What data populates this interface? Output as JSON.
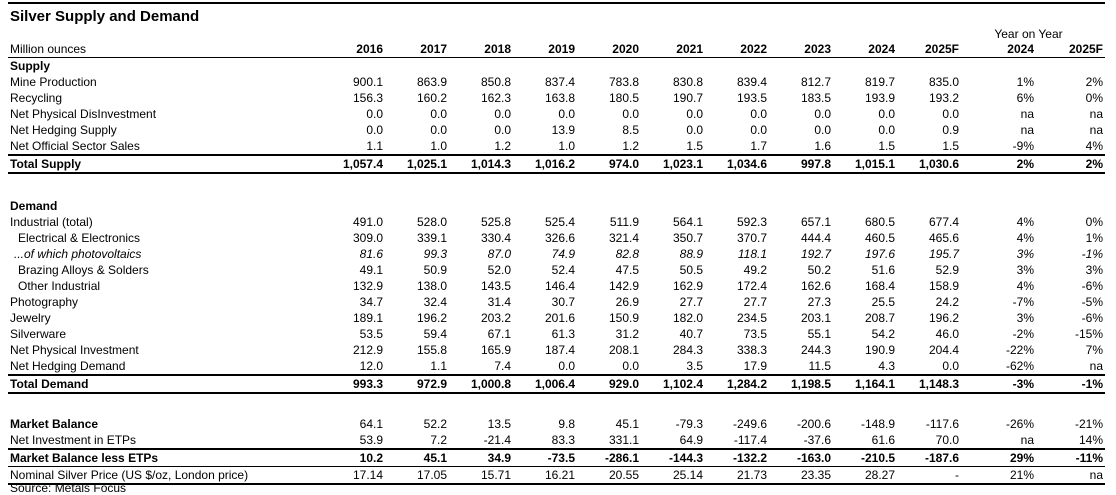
{
  "title": "Silver Supply and Demand",
  "unit_label": "Million ounces",
  "year_on_year_label": "Year on Year",
  "years": [
    "2016",
    "2017",
    "2018",
    "2019",
    "2020",
    "2021",
    "2022",
    "2023",
    "2024",
    "2025F"
  ],
  "yoy_years": [
    "2024",
    "2025F"
  ],
  "source_note": "Source: Metals Focus",
  "rows": [
    {
      "style": "section",
      "label": "Supply"
    },
    {
      "style": "normal",
      "label": "Mine Production",
      "values": [
        "900.1",
        "863.9",
        "850.8",
        "837.4",
        "783.8",
        "830.8",
        "839.4",
        "812.7",
        "819.7",
        "835.0"
      ],
      "yoy": [
        "1%",
        "2%"
      ]
    },
    {
      "style": "normal",
      "label": "Recycling",
      "values": [
        "156.3",
        "160.2",
        "162.3",
        "163.8",
        "180.5",
        "190.7",
        "193.5",
        "183.5",
        "193.9",
        "193.2"
      ],
      "yoy": [
        "6%",
        "0%"
      ]
    },
    {
      "style": "normal",
      "label": "Net Physical DisInvestment",
      "values": [
        "0.0",
        "0.0",
        "0.0",
        "0.0",
        "0.0",
        "0.0",
        "0.0",
        "0.0",
        "0.0",
        "0.0"
      ],
      "yoy": [
        "na",
        "na"
      ]
    },
    {
      "style": "normal",
      "label": "Net Hedging Supply",
      "values": [
        "0.0",
        "0.0",
        "0.0",
        "13.9",
        "8.5",
        "0.0",
        "0.0",
        "0.0",
        "0.0",
        "0.9"
      ],
      "yoy": [
        "na",
        "na"
      ]
    },
    {
      "style": "normal",
      "label": "Net Official Sector Sales",
      "values": [
        "1.1",
        "1.0",
        "1.2",
        "1.0",
        "1.2",
        "1.5",
        "1.7",
        "1.6",
        "1.5",
        "1.5"
      ],
      "yoy": [
        "-9%",
        "4%"
      ]
    },
    {
      "style": "total",
      "label": "Total Supply",
      "values": [
        "1,057.4",
        "1,025.1",
        "1,014.3",
        "1,016.2",
        "974.0",
        "1,023.1",
        "1,034.6",
        "997.8",
        "1,015.1",
        "1,030.6"
      ],
      "yoy": [
        "2%",
        "2%"
      ]
    },
    {
      "style": "spacer",
      "h": 24
    },
    {
      "style": "section",
      "label": "Demand"
    },
    {
      "style": "normal",
      "label": "Industrial (total)",
      "values": [
        "491.0",
        "528.0",
        "525.8",
        "525.4",
        "511.9",
        "564.1",
        "592.3",
        "657.1",
        "680.5",
        "677.4"
      ],
      "yoy": [
        "4%",
        "0%"
      ]
    },
    {
      "style": "indent",
      "label": "Electrical & Electronics",
      "values": [
        "309.0",
        "339.1",
        "330.4",
        "326.6",
        "321.4",
        "350.7",
        "370.7",
        "444.4",
        "460.5",
        "465.6"
      ],
      "yoy": [
        "4%",
        "1%"
      ]
    },
    {
      "style": "italic",
      "label": "...of which photovoltaics",
      "values": [
        "81.6",
        "99.3",
        "87.0",
        "74.9",
        "82.8",
        "88.9",
        "118.1",
        "192.7",
        "197.6",
        "195.7"
      ],
      "yoy": [
        "3%",
        "-1%"
      ]
    },
    {
      "style": "indent",
      "label": "Brazing Alloys & Solders",
      "values": [
        "49.1",
        "50.9",
        "52.0",
        "52.4",
        "47.5",
        "50.5",
        "49.2",
        "50.2",
        "51.6",
        "52.9"
      ],
      "yoy": [
        "3%",
        "3%"
      ]
    },
    {
      "style": "indent",
      "label": "Other Industrial",
      "values": [
        "132.9",
        "138.0",
        "143.5",
        "146.4",
        "142.9",
        "162.9",
        "172.4",
        "162.6",
        "168.4",
        "158.9"
      ],
      "yoy": [
        "4%",
        "-6%"
      ]
    },
    {
      "style": "normal",
      "label": "Photography",
      "values": [
        "34.7",
        "32.4",
        "31.4",
        "30.7",
        "26.9",
        "27.7",
        "27.7",
        "27.3",
        "25.5",
        "24.2"
      ],
      "yoy": [
        "-7%",
        "-5%"
      ]
    },
    {
      "style": "normal",
      "label": "Jewelry",
      "values": [
        "189.1",
        "196.2",
        "203.2",
        "201.6",
        "150.9",
        "182.0",
        "234.5",
        "203.1",
        "208.7",
        "196.2"
      ],
      "yoy": [
        "3%",
        "-6%"
      ]
    },
    {
      "style": "normal",
      "label": "Silverware",
      "values": [
        "53.5",
        "59.4",
        "67.1",
        "61.3",
        "31.2",
        "40.7",
        "73.5",
        "55.1",
        "54.2",
        "46.0"
      ],
      "yoy": [
        "-2%",
        "-15%"
      ]
    },
    {
      "style": "normal",
      "label": "Net Physical Investment",
      "values": [
        "212.9",
        "155.8",
        "165.9",
        "187.4",
        "208.1",
        "284.3",
        "338.3",
        "244.3",
        "190.9",
        "204.4"
      ],
      "yoy": [
        "-22%",
        "7%"
      ]
    },
    {
      "style": "normal",
      "label": "Net Hedging Demand",
      "values": [
        "12.0",
        "1.1",
        "7.4",
        "0.0",
        "0.0",
        "3.5",
        "17.9",
        "11.5",
        "4.3",
        "0.0"
      ],
      "yoy": [
        "-62%",
        "na"
      ]
    },
    {
      "style": "total",
      "label": "Total Demand",
      "values": [
        "993.3",
        "972.9",
        "1,000.8",
        "1,006.4",
        "929.0",
        "1,102.4",
        "1,284.2",
        "1,198.5",
        "1,164.1",
        "1,148.3"
      ],
      "yoy": [
        "-3%",
        "-1%"
      ]
    },
    {
      "style": "spacer",
      "h": 22
    },
    {
      "style": "boldlabel",
      "label": "Market Balance",
      "values": [
        "64.1",
        "52.2",
        "13.5",
        "9.8",
        "45.1",
        "-79.3",
        "-249.6",
        "-200.6",
        "-148.9",
        "-117.6"
      ],
      "yoy": [
        "-26%",
        "-21%"
      ]
    },
    {
      "style": "normal",
      "label": "Net Investment in ETPs",
      "values": [
        "53.9",
        "7.2",
        "-21.4",
        "83.3",
        "331.1",
        "64.9",
        "-117.4",
        "-37.6",
        "61.6",
        "70.0"
      ],
      "yoy": [
        "na",
        "14%"
      ]
    },
    {
      "style": "totalmb",
      "label": "Market Balance less ETPs",
      "values": [
        "10.2",
        "45.1",
        "34.9",
        "-73.5",
        "-286.1",
        "-144.3",
        "-132.2",
        "-163.0",
        "-210.5",
        "-187.6"
      ],
      "yoy": [
        "29%",
        "-11%"
      ]
    },
    {
      "style": "price",
      "label": "Nominal Silver Price (US $/oz, London price)",
      "values": [
        "17.14",
        "17.05",
        "15.71",
        "16.21",
        "20.55",
        "25.14",
        "21.73",
        "23.35",
        "28.27",
        "-"
      ],
      "yoy": [
        "21%",
        "na"
      ]
    }
  ]
}
